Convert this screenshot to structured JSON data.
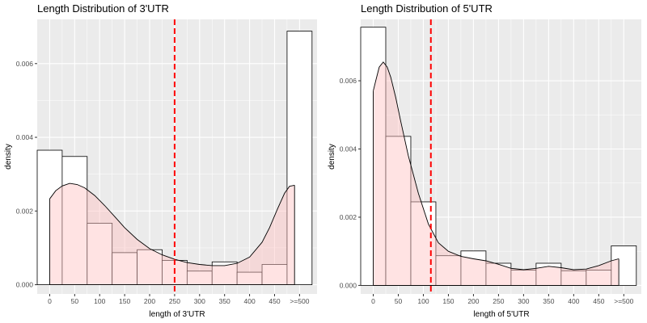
{
  "chart_data": [
    {
      "type": "histogram-density",
      "title": "Length Distribution of 3'UTR",
      "xlabel": "length of 3'UTR",
      "ylabel": "density",
      "xlim": [
        -25,
        535
      ],
      "ylim": [
        -0.00025,
        0.0072
      ],
      "x_ticks": [
        0,
        50,
        100,
        150,
        200,
        250,
        300,
        350,
        400,
        450,
        500
      ],
      "x_tick_labels": [
        "0",
        "50",
        "100",
        "150",
        "200",
        "250",
        "300",
        "350",
        "400",
        "450",
        ">=500"
      ],
      "y_ticks": [
        0,
        0.002,
        0.004,
        0.006
      ],
      "y_tick_labels": [
        "0.000",
        "0.002",
        "0.004",
        "0.006"
      ],
      "bins": [
        {
          "start": -25,
          "end": 25,
          "value": 0.00365
        },
        {
          "start": 25,
          "end": 75,
          "value": 0.00348
        },
        {
          "start": 75,
          "end": 125,
          "value": 0.00167
        },
        {
          "start": 125,
          "end": 175,
          "value": 0.00087
        },
        {
          "start": 175,
          "end": 225,
          "value": 0.00095
        },
        {
          "start": 225,
          "end": 275,
          "value": 0.00066
        },
        {
          "start": 275,
          "end": 325,
          "value": 0.00037
        },
        {
          "start": 325,
          "end": 375,
          "value": 0.00062
        },
        {
          "start": 375,
          "end": 425,
          "value": 0.00034
        },
        {
          "start": 425,
          "end": 475,
          "value": 0.00055
        },
        {
          "start": 475,
          "end": 525,
          "value": 0.00688
        }
      ],
      "density_curve": {
        "x": [
          0,
          12,
          25,
          40,
          55,
          70,
          90,
          110,
          130,
          150,
          175,
          200,
          225,
          250,
          275,
          300,
          325,
          350,
          375,
          400,
          425,
          440,
          455,
          470,
          480,
          490
        ],
        "y": [
          0.00233,
          0.00255,
          0.00268,
          0.00275,
          0.00272,
          0.00263,
          0.00242,
          0.00215,
          0.00185,
          0.00155,
          0.00123,
          0.00098,
          0.00081,
          0.00069,
          0.0006,
          0.00055,
          0.00052,
          0.00052,
          0.00058,
          0.00075,
          0.00115,
          0.00155,
          0.00203,
          0.00248,
          0.00267,
          0.0027
        ]
      },
      "vline": 250,
      "colors": {
        "panel": "#ebebeb",
        "grid": "#ffffff",
        "bar_fill": "#ffffff",
        "bar_stroke": "#000000",
        "density_fill": "#ffc0c0",
        "density_fill_opacity": 0.45,
        "vline": "#ff0000"
      }
    },
    {
      "type": "histogram-density",
      "title": "Length Distribution of 5'UTR",
      "xlabel": "length of 5'UTR",
      "ylabel": "density",
      "xlim": [
        -25,
        535
      ],
      "ylim": [
        -0.00025,
        0.0078
      ],
      "x_ticks": [
        0,
        50,
        100,
        150,
        200,
        250,
        300,
        350,
        400,
        450,
        500
      ],
      "x_tick_labels": [
        "0",
        "50",
        "100",
        "150",
        "200",
        "250",
        "300",
        "350",
        "400",
        "450",
        ">=500"
      ],
      "y_ticks": [
        0,
        0.002,
        0.004,
        0.006
      ],
      "y_tick_labels": [
        "0.000",
        "0.002",
        "0.004",
        "0.006"
      ],
      "bins": [
        {
          "start": -25,
          "end": 25,
          "value": 0.00757
        },
        {
          "start": 25,
          "end": 75,
          "value": 0.00437
        },
        {
          "start": 75,
          "end": 125,
          "value": 0.00245
        },
        {
          "start": 125,
          "end": 175,
          "value": 0.00087
        },
        {
          "start": 175,
          "end": 225,
          "value": 0.00101
        },
        {
          "start": 225,
          "end": 275,
          "value": 0.00065
        },
        {
          "start": 275,
          "end": 325,
          "value": 0.00045
        },
        {
          "start": 325,
          "end": 375,
          "value": 0.00065
        },
        {
          "start": 375,
          "end": 425,
          "value": 0.00043
        },
        {
          "start": 425,
          "end": 475,
          "value": 0.00045
        },
        {
          "start": 475,
          "end": 525,
          "value": 0.00116
        }
      ],
      "density_curve": {
        "x": [
          0,
          5,
          12,
          20,
          28,
          35,
          45,
          55,
          70,
          90,
          110,
          130,
          150,
          175,
          200,
          225,
          250,
          275,
          300,
          325,
          350,
          375,
          400,
          425,
          450,
          475,
          490
        ],
        "y": [
          0.0057,
          0.006,
          0.0064,
          0.00655,
          0.0064,
          0.0061,
          0.0055,
          0.0048,
          0.0038,
          0.0027,
          0.0018,
          0.00125,
          0.001,
          0.00085,
          0.00078,
          0.00072,
          0.00062,
          0.0005,
          0.00046,
          0.0005,
          0.00056,
          0.00052,
          0.00046,
          0.00048,
          0.00058,
          0.00072,
          0.00078
        ]
      },
      "vline": 115,
      "colors": {
        "panel": "#ebebeb",
        "grid": "#ffffff",
        "bar_fill": "#ffffff",
        "bar_stroke": "#000000",
        "density_fill": "#ffc0c0",
        "density_fill_opacity": 0.45,
        "vline": "#ff0000"
      }
    }
  ]
}
